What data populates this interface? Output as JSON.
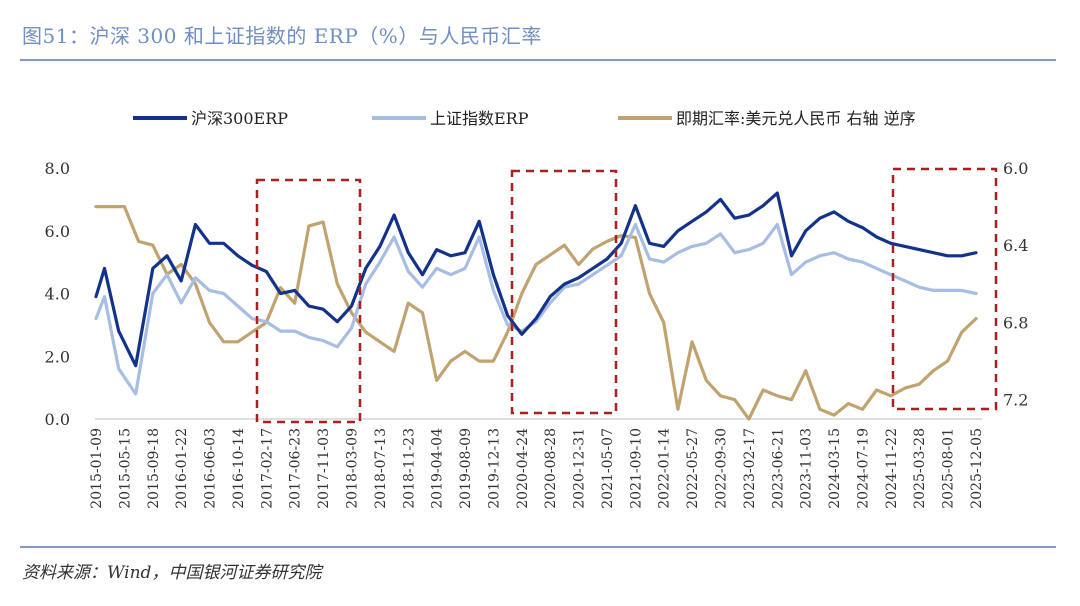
{
  "header": {
    "title": "图51：沪深 300 和上证指数的 ERP（%）与人民币汇率"
  },
  "footer": {
    "source": "资料来源：Wind，中国银河证券研究院"
  },
  "chart_data": {
    "type": "line",
    "title": "图51：沪深 300 和上证指数的 ERP（%）与人民币汇率",
    "y_left": {
      "ticks": [
        "8.0",
        "6.0",
        "4.0",
        "2.0",
        "0.0"
      ],
      "range": [
        0,
        8
      ]
    },
    "y_right": {
      "ticks": [
        "6.0",
        "6.4",
        "6.8",
        "7.2"
      ],
      "range": [
        6.0,
        7.3
      ],
      "inverted": true,
      "label": "右轴 逆序"
    },
    "x_ticks": [
      "2015-01-09",
      "2015-05-15",
      "2015-09-18",
      "2016-01-22",
      "2016-06-03",
      "2016-10-14",
      "2017-02-17",
      "2017-06-23",
      "2017-11-03",
      "2018-03-09",
      "2018-07-13",
      "2018-11-23",
      "2019-04-04",
      "2019-08-09",
      "2019-12-13",
      "2020-04-24",
      "2020-08-28",
      "2020-12-31",
      "2021-05-07",
      "2021-09-10",
      "2022-01-14",
      "2022-05-27",
      "2022-09-30",
      "2023-02-17",
      "2023-06-21",
      "2023-11-03",
      "2024-03-15",
      "2024-07-19",
      "2024-11-22",
      "2025-03-28",
      "2025-08-01",
      "2025-12-05"
    ],
    "series": [
      {
        "name": "沪深300ERP",
        "color": "#13338a",
        "axis": "left",
        "x": [
          0,
          0.3,
          0.8,
          1.4,
          2,
          2.5,
          3,
          3.5,
          4,
          4.5,
          5,
          5.5,
          6,
          6.5,
          7,
          7.5,
          8,
          8.5,
          9,
          9.5,
          10,
          10.5,
          11,
          11.5,
          12,
          12.5,
          13,
          13.5,
          14,
          14.5,
          15,
          15.5,
          16,
          16.5,
          17,
          17.5,
          18,
          18.5,
          19,
          19.5,
          20,
          20.5,
          21,
          21.5,
          22,
          22.5,
          23,
          23.5,
          24,
          24.5,
          25,
          25.5,
          26,
          26.5,
          27,
          27.5,
          28,
          28.5,
          29,
          29.5,
          30,
          30.5,
          31
        ],
        "values": [
          3.9,
          4.8,
          2.8,
          1.7,
          4.8,
          5.2,
          4.4,
          6.2,
          5.6,
          5.6,
          5.2,
          4.9,
          4.7,
          4.0,
          4.1,
          3.6,
          3.5,
          3.1,
          3.6,
          4.8,
          5.5,
          6.5,
          5.3,
          4.6,
          5.4,
          5.2,
          5.3,
          6.3,
          4.6,
          3.3,
          2.7,
          3.2,
          3.9,
          4.3,
          4.5,
          4.8,
          5.1,
          5.6,
          6.8,
          5.6,
          5.5,
          6.0,
          6.3,
          6.6,
          7.0,
          6.4,
          6.5,
          6.8,
          7.2,
          5.2,
          6.0,
          6.4,
          6.6,
          6.3,
          6.1,
          5.8,
          5.6,
          5.5,
          5.4,
          5.3,
          5.2,
          5.2,
          5.3
        ]
      },
      {
        "name": "上证指数ERP",
        "color": "#a8bde3",
        "axis": "left",
        "x": [
          0,
          0.3,
          0.8,
          1.4,
          2,
          2.5,
          3,
          3.5,
          4,
          4.5,
          5,
          5.5,
          6,
          6.5,
          7,
          7.5,
          8,
          8.5,
          9,
          9.5,
          10,
          10.5,
          11,
          11.5,
          12,
          12.5,
          13,
          13.5,
          14,
          14.5,
          15,
          15.5,
          16,
          16.5,
          17,
          17.5,
          18,
          18.5,
          19,
          19.5,
          20,
          20.5,
          21,
          21.5,
          22,
          22.5,
          23,
          23.5,
          24,
          24.5,
          25,
          25.5,
          26,
          26.5,
          27,
          27.5,
          28,
          28.5,
          29,
          29.5,
          30,
          30.5,
          31
        ],
        "values": [
          3.2,
          3.9,
          1.6,
          0.8,
          4.0,
          4.6,
          3.7,
          4.5,
          4.1,
          4.0,
          3.6,
          3.2,
          3.1,
          2.8,
          2.8,
          2.6,
          2.5,
          2.3,
          2.9,
          4.3,
          5.0,
          5.8,
          4.7,
          4.2,
          4.8,
          4.6,
          4.8,
          5.8,
          4.1,
          3.0,
          2.8,
          3.1,
          3.7,
          4.2,
          4.3,
          4.6,
          4.9,
          5.2,
          6.2,
          5.1,
          5.0,
          5.3,
          5.5,
          5.6,
          5.9,
          5.3,
          5.4,
          5.6,
          6.2,
          4.6,
          5.0,
          5.2,
          5.3,
          5.1,
          5.0,
          4.8,
          4.6,
          4.4,
          4.2,
          4.1,
          4.1,
          4.1,
          4.0
        ]
      },
      {
        "name": "即期汇率:美元兑人民币 右轴 逆序",
        "color": "#c1a370",
        "axis": "right",
        "x": [
          0,
          0.5,
          1,
          1.5,
          2,
          2.5,
          3,
          3.5,
          4,
          4.5,
          5,
          5.5,
          6,
          6.5,
          7,
          7.5,
          8,
          8.5,
          9,
          9.5,
          10,
          10.5,
          11,
          11.5,
          12,
          12.5,
          13,
          13.5,
          14,
          14.5,
          15,
          15.5,
          16,
          16.5,
          17,
          17.5,
          18,
          18.5,
          19,
          19.5,
          20,
          20.5,
          21,
          21.5,
          22,
          22.5,
          23,
          23.5,
          24,
          24.5,
          25,
          25.5,
          26,
          26.5,
          27,
          27.5,
          28,
          28.5,
          29,
          29.5,
          30,
          30.5,
          31
        ],
        "values": [
          6.2,
          6.2,
          6.2,
          6.38,
          6.4,
          6.55,
          6.5,
          6.6,
          6.8,
          6.9,
          6.9,
          6.85,
          6.8,
          6.62,
          6.7,
          6.3,
          6.28,
          6.6,
          6.75,
          6.85,
          6.9,
          6.95,
          6.7,
          6.75,
          7.1,
          7.0,
          6.95,
          7.0,
          7.0,
          6.85,
          6.65,
          6.5,
          6.45,
          6.4,
          6.5,
          6.42,
          6.38,
          6.35,
          6.36,
          6.65,
          6.8,
          7.25,
          6.9,
          7.1,
          7.18,
          7.2,
          7.3,
          7.15,
          7.18,
          7.2,
          7.05,
          7.25,
          7.28,
          7.22,
          7.25,
          7.15,
          7.18,
          7.14,
          7.12,
          7.05,
          7.0,
          6.85,
          6.78
        ]
      }
    ]
  }
}
